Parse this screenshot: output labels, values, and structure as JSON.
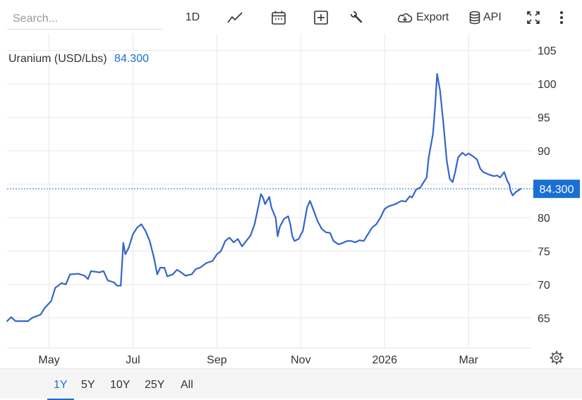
{
  "toolbar": {
    "search_placeholder": "Search...",
    "interval_label": "1D",
    "export_label": "Export",
    "api_label": "API",
    "icons": [
      "line-chart-icon",
      "calendar-icon",
      "add-icon",
      "wrench-icon",
      "cloud-download-icon",
      "database-icon",
      "fullscreen-icon",
      "more-icon"
    ]
  },
  "header": {
    "name": "Uranium (USD/Lbs)",
    "value": "84.300"
  },
  "ranges": [
    {
      "label": "1Y",
      "active": true
    },
    {
      "label": "5Y",
      "active": false
    },
    {
      "label": "10Y",
      "active": false
    },
    {
      "label": "25Y",
      "active": false
    },
    {
      "label": "All",
      "active": false
    }
  ],
  "colors": {
    "line": "#3266cc",
    "accent": "#1a6fd4",
    "last_tag": "#1a6fd4"
  },
  "chart_data": {
    "type": "line",
    "title": "Uranium (USD/Lbs)",
    "last_value": 84.3,
    "last_label": "84.300",
    "y_ticks": [
      65,
      70,
      75,
      80,
      85,
      90,
      95,
      100,
      105
    ],
    "y_tick_labels": [
      "65",
      "70",
      "75",
      "80",
      "",
      "90",
      "95",
      "100",
      "105"
    ],
    "ylim": [
      60.5,
      107.5
    ],
    "x_ticks": [
      {
        "label": "May",
        "t": 1
      },
      {
        "label": "Jul",
        "t": 3
      },
      {
        "label": "Sep",
        "t": 5
      },
      {
        "label": "Nov",
        "t": 7
      },
      {
        "label": "2026",
        "t": 9
      },
      {
        "label": "Mar",
        "t": 11
      }
    ],
    "xlim": [
      0.0,
      12.24
    ],
    "grid": true,
    "series": [
      {
        "values": [
          [
            0.0,
            64.5
          ],
          [
            0.1,
            65.1
          ],
          [
            0.2,
            64.5
          ],
          [
            0.5,
            64.5
          ],
          [
            0.6,
            65.0
          ],
          [
            0.8,
            65.5
          ],
          [
            0.9,
            66.5
          ],
          [
            1.05,
            67.5
          ],
          [
            1.15,
            69.5
          ],
          [
            1.3,
            70.2
          ],
          [
            1.4,
            70.0
          ],
          [
            1.5,
            71.5
          ],
          [
            1.7,
            71.6
          ],
          [
            1.85,
            71.3
          ],
          [
            1.93,
            70.8
          ],
          [
            2.0,
            72.0
          ],
          [
            2.2,
            71.8
          ],
          [
            2.3,
            72.0
          ],
          [
            2.4,
            70.6
          ],
          [
            2.55,
            70.3
          ],
          [
            2.62,
            69.8
          ],
          [
            2.71,
            69.8
          ],
          [
            2.77,
            76.2
          ],
          [
            2.82,
            74.5
          ],
          [
            2.9,
            75.5
          ],
          [
            3.0,
            77.5
          ],
          [
            3.1,
            78.5
          ],
          [
            3.2,
            79.0
          ],
          [
            3.3,
            78.0
          ],
          [
            3.4,
            76.5
          ],
          [
            3.5,
            74.0
          ],
          [
            3.58,
            71.5
          ],
          [
            3.65,
            72.5
          ],
          [
            3.75,
            72.5
          ],
          [
            3.82,
            71.2
          ],
          [
            3.95,
            71.5
          ],
          [
            4.05,
            72.2
          ],
          [
            4.15,
            71.8
          ],
          [
            4.25,
            71.3
          ],
          [
            4.4,
            71.5
          ],
          [
            4.5,
            72.3
          ],
          [
            4.6,
            72.5
          ],
          [
            4.75,
            73.2
          ],
          [
            4.9,
            73.5
          ],
          [
            5.0,
            74.5
          ],
          [
            5.1,
            75.0
          ],
          [
            5.2,
            76.5
          ],
          [
            5.3,
            77.0
          ],
          [
            5.4,
            76.3
          ],
          [
            5.5,
            76.8
          ],
          [
            5.6,
            75.7
          ],
          [
            5.7,
            76.5
          ],
          [
            5.8,
            77.3
          ],
          [
            5.9,
            79.0
          ],
          [
            6.0,
            82.0
          ],
          [
            6.05,
            83.5
          ],
          [
            6.1,
            83.0
          ],
          [
            6.15,
            82.0
          ],
          [
            6.25,
            83.1
          ],
          [
            6.3,
            81.5
          ],
          [
            6.4,
            80.0
          ],
          [
            6.45,
            77.2
          ],
          [
            6.5,
            78.6
          ],
          [
            6.6,
            79.8
          ],
          [
            6.7,
            80.2
          ],
          [
            6.75,
            79.0
          ],
          [
            6.8,
            77.2
          ],
          [
            6.85,
            76.5
          ],
          [
            6.95,
            76.8
          ],
          [
            7.05,
            78.0
          ],
          [
            7.15,
            81.5
          ],
          [
            7.22,
            82.5
          ],
          [
            7.28,
            81.5
          ],
          [
            7.4,
            79.5
          ],
          [
            7.5,
            78.3
          ],
          [
            7.6,
            77.8
          ],
          [
            7.7,
            77.7
          ],
          [
            7.78,
            76.5
          ],
          [
            7.9,
            76.0
          ],
          [
            8.0,
            76.2
          ],
          [
            8.1,
            76.5
          ],
          [
            8.2,
            76.5
          ],
          [
            8.3,
            76.3
          ],
          [
            8.4,
            76.6
          ],
          [
            8.5,
            76.5
          ],
          [
            8.6,
            77.5
          ],
          [
            8.7,
            78.5
          ],
          [
            8.8,
            79.0
          ],
          [
            8.9,
            80.0
          ],
          [
            9.0,
            81.3
          ],
          [
            9.1,
            81.7
          ],
          [
            9.25,
            82.0
          ],
          [
            9.4,
            82.5
          ],
          [
            9.5,
            82.4
          ],
          [
            9.6,
            83.2
          ],
          [
            9.65,
            83.0
          ],
          [
            9.75,
            84.2
          ],
          [
            9.85,
            84.5
          ],
          [
            9.92,
            85.2
          ],
          [
            10.0,
            86.0
          ],
          [
            10.05,
            89.0
          ],
          [
            10.15,
            92.5
          ],
          [
            10.2,
            96.5
          ],
          [
            10.25,
            101.5
          ],
          [
            10.32,
            99.0
          ],
          [
            10.4,
            94.0
          ],
          [
            10.48,
            88.5
          ],
          [
            10.55,
            85.8
          ],
          [
            10.62,
            85.3
          ],
          [
            10.68,
            86.8
          ],
          [
            10.75,
            89.0
          ],
          [
            10.85,
            89.7
          ],
          [
            10.93,
            89.3
          ],
          [
            11.0,
            89.6
          ],
          [
            11.1,
            89.2
          ],
          [
            11.2,
            88.7
          ],
          [
            11.28,
            87.3
          ],
          [
            11.35,
            86.8
          ],
          [
            11.5,
            86.4
          ],
          [
            11.6,
            86.2
          ],
          [
            11.68,
            86.3
          ],
          [
            11.75,
            86.0
          ],
          [
            11.85,
            86.8
          ],
          [
            11.92,
            85.5
          ],
          [
            11.97,
            85.0
          ],
          [
            12.0,
            84.0
          ],
          [
            12.05,
            83.3
          ],
          [
            12.12,
            83.8
          ],
          [
            12.24,
            84.3
          ]
        ]
      }
    ]
  }
}
